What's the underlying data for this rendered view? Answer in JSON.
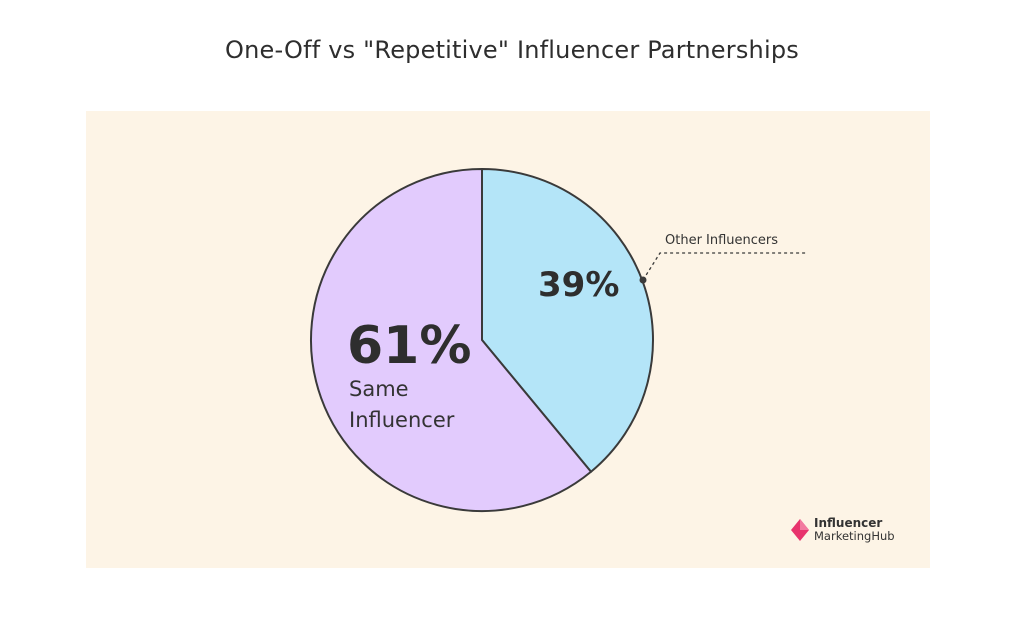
{
  "title": "One-Off vs \"Repetitive\" Influencer Partnerships",
  "colors": {
    "panel_bg": "#fdf4e6",
    "same_influencer": "#e2cbfd",
    "other_influencers": "#b4e5f8",
    "outline": "#3a3a3a",
    "brand_accent": "#e8336d"
  },
  "chart_data": {
    "type": "pie",
    "title": "One-Off vs \"Repetitive\" Influencer Partnerships",
    "slices": [
      {
        "label": "Other Influencers",
        "value": 39,
        "display": "39%",
        "color": "#b4e5f8"
      },
      {
        "label": "Same Influencer",
        "value": 61,
        "display": "61%",
        "color": "#e2cbfd"
      }
    ],
    "label_lines": {
      "same_line1": "Same",
      "same_line2": "Influencer"
    },
    "legend": "none"
  },
  "brand": {
    "line1": "Influencer",
    "line2": "MarketingHub",
    "icon": "diamond-logo-icon"
  }
}
